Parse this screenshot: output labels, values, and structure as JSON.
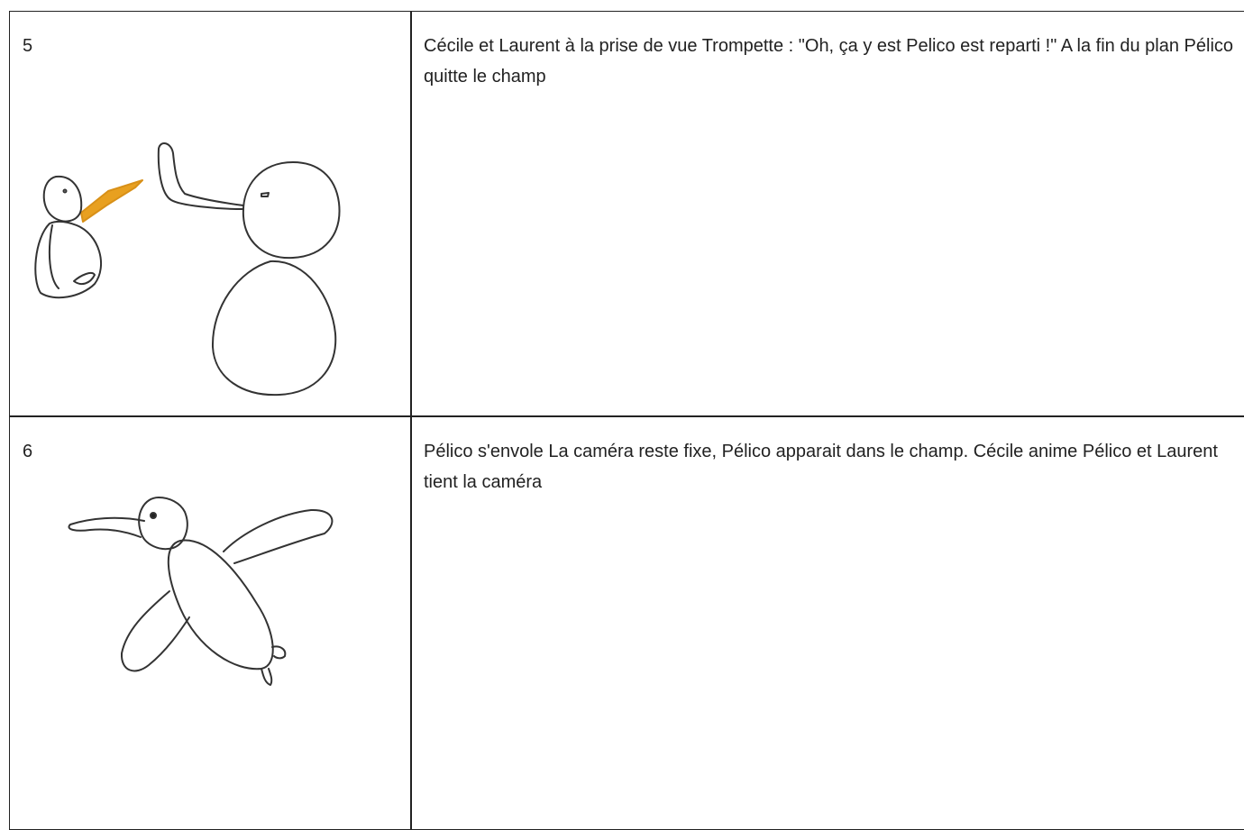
{
  "table": {
    "rows": [
      [
        "5",
        "Cécile et Laurent à la prise de vue Trompette : \"Oh, ça y est Pelico est reparti !\" A la fin du plan Pélico quitte le champ"
      ],
      [
        "6",
        "Pélico s'envole La caméra reste fixe, Pélico apparait dans le champ. Cécile anime Pélico et Laurent tient la caméra"
      ]
    ]
  }
}
